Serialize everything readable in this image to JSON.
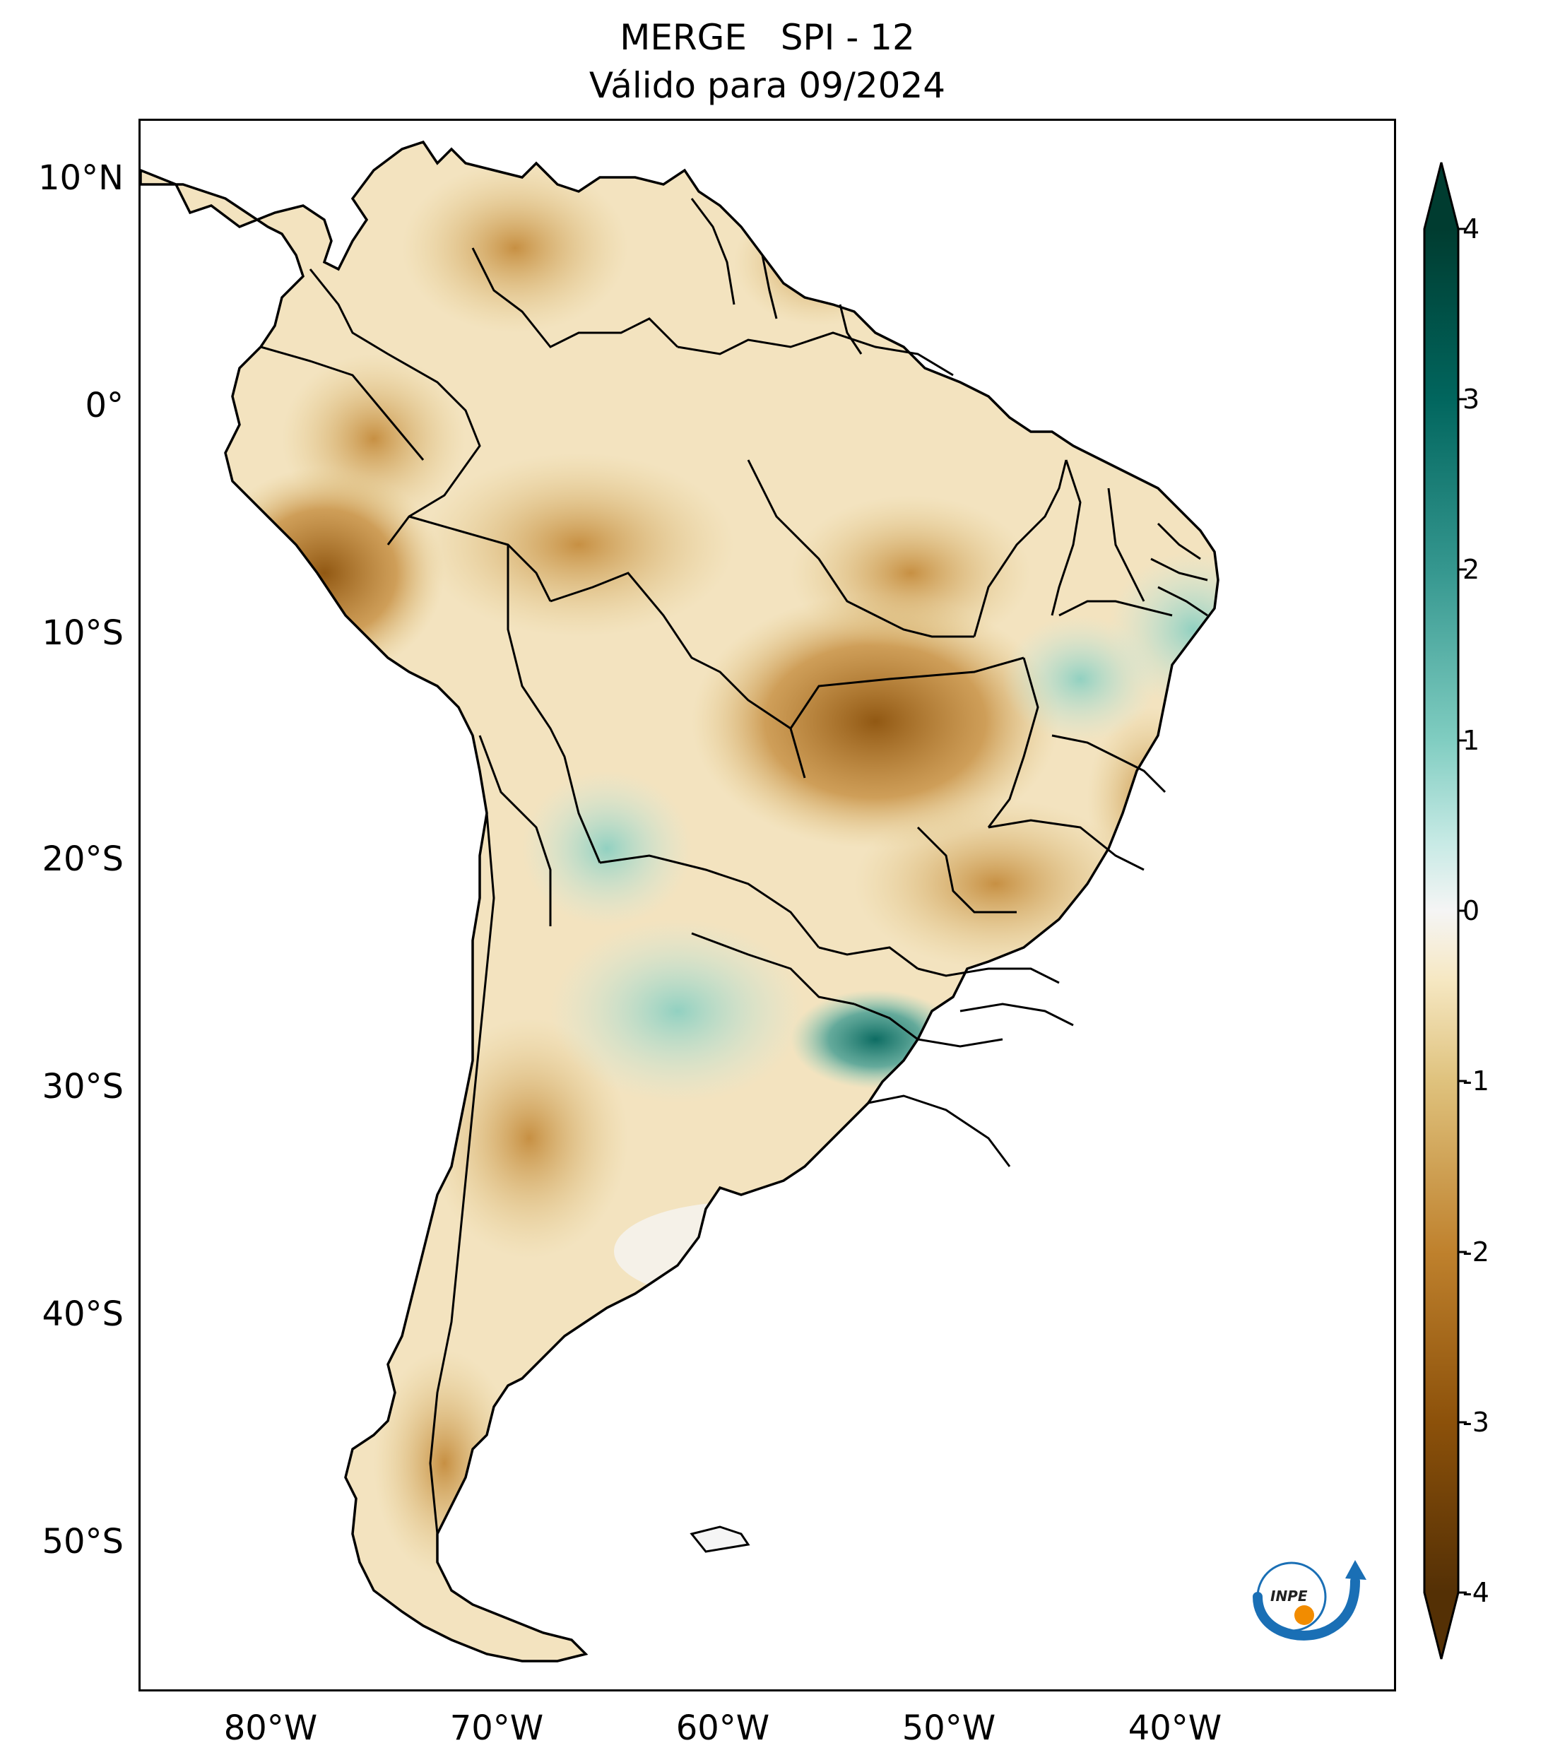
{
  "title": {
    "line1": "MERGE   SPI - 12",
    "line2": "Válido para 09/2024"
  },
  "map": {
    "region": "South America",
    "latitude_labels": [
      "10°N",
      "0°",
      "10°S",
      "20°S",
      "30°S",
      "40°S",
      "50°S"
    ],
    "longitude_labels": [
      "80°W",
      "70°W",
      "60°W",
      "50°W",
      "40°W"
    ],
    "logo_text": "INPE"
  },
  "colorbar": {
    "ticks": [
      "4",
      "3",
      "2",
      "1",
      "0",
      "-1",
      "-2",
      "-3",
      "-4"
    ],
    "colors": {
      "neg4": "#543005",
      "neg3": "#8c510a",
      "neg2": "#bf812d",
      "neg1": "#dfc27d",
      "neg05": "#f6e8c3",
      "zero": "#f5f5f5",
      "pos05": "#c7eae5",
      "pos1": "#80cdc1",
      "pos2": "#35978f",
      "pos3": "#01665e",
      "pos4": "#003c30"
    }
  }
}
